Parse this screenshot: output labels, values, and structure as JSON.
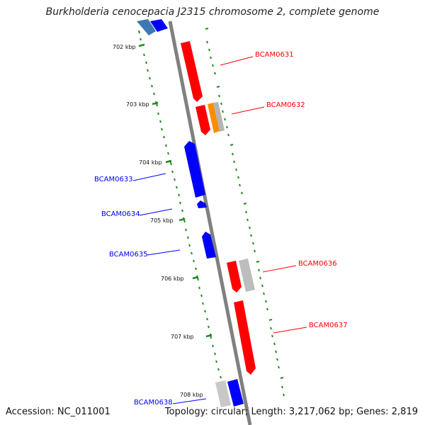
{
  "title": "Burkholderia cenocepacia J2315 chromosome 2, complete genome",
  "footer": {
    "accession": "Accession: NC_011001",
    "summary": "Topology: circular; Length: 3,217,062 bp; Genes: 2,819"
  },
  "colors": {
    "forward_gene": "#ff0000",
    "reverse_gene": "#0000ff",
    "rna_gene": "#ff8c00",
    "other_feature": "#b0b0b0",
    "backbone": "#808080",
    "tick": "#228b22"
  },
  "kbp_labels": [
    "702 kbp",
    "703 kbp",
    "704 kbp",
    "705 kbp",
    "706 kbp",
    "707 kbp",
    "708 kbp"
  ],
  "gene_labels": {
    "BCAM0631": "BCAM0631",
    "BCAM0632": "BCAM0632",
    "BCAM0633": "BCAM0633",
    "BCAM0634": "BCAM0634",
    "BCAM0635": "BCAM0635",
    "BCAM0636": "BCAM0636",
    "BCAM0637": "BCAM0637",
    "BCAM0638": "BCAM0638"
  }
}
